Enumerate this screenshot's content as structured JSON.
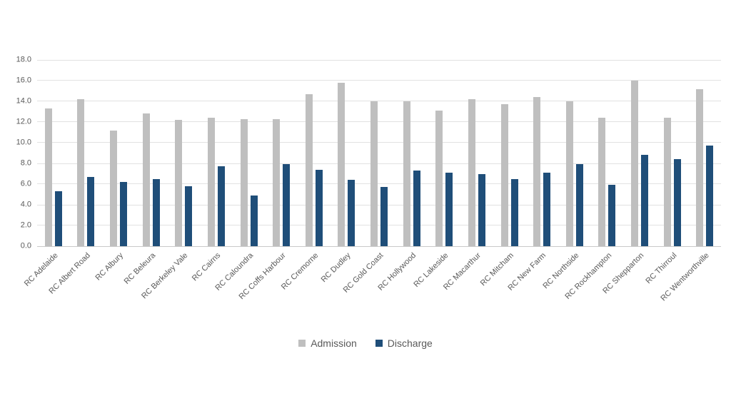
{
  "chart_data": {
    "type": "bar",
    "title": "",
    "xlabel": "",
    "ylabel": "",
    "categories": [
      "RC Adelaide",
      "RC Albert Road",
      "RC Albury",
      "RC Beleura",
      "RC Berkeley Vale",
      "RC Cairns",
      "RC Caloundra",
      "RC Coffs Harbour",
      "RC Cremorne",
      "RC Dudley",
      "RC Gold Coast",
      "RC Hollywood",
      "RC Lakeside",
      "RC Macarthur",
      "RC Mitcham",
      "RC New Farm",
      "RC Northside",
      "RC Rockhampton",
      "RC Shepparton",
      "RC Thirroul",
      "RC Wentworthville"
    ],
    "series": [
      {
        "name": "Admission",
        "color": "#BFBFBF",
        "values": [
          13.3,
          14.2,
          11.2,
          12.8,
          12.2,
          12.4,
          12.3,
          12.3,
          14.7,
          15.8,
          14.0,
          14.0,
          13.1,
          14.2,
          13.7,
          14.4,
          14.0,
          12.4,
          16.0,
          12.4,
          15.2
        ]
      },
      {
        "name": "Discharge",
        "color": "#1F4E79",
        "values": [
          5.3,
          6.7,
          6.2,
          6.5,
          5.8,
          7.7,
          4.9,
          7.9,
          7.4,
          6.4,
          5.7,
          7.3,
          7.1,
          7.0,
          6.5,
          7.1,
          7.9,
          5.9,
          8.8,
          8.4,
          9.7
        ]
      }
    ],
    "ylim": [
      0,
      18
    ],
    "ytick_step": 2,
    "ytick_labels": [
      "18.0",
      "16.0",
      "14.0",
      "12.0",
      "10.0",
      "8.0",
      "6.0",
      "4.0",
      "2.0",
      "0.0"
    ],
    "grid": true,
    "legend_position": "bottom"
  },
  "colors": {
    "background": "#FFFFFF",
    "gridline": "#E2E2E2",
    "axis_line": "#C9C9C9",
    "axis_text": "#595959",
    "legend_text": "#595959"
  }
}
